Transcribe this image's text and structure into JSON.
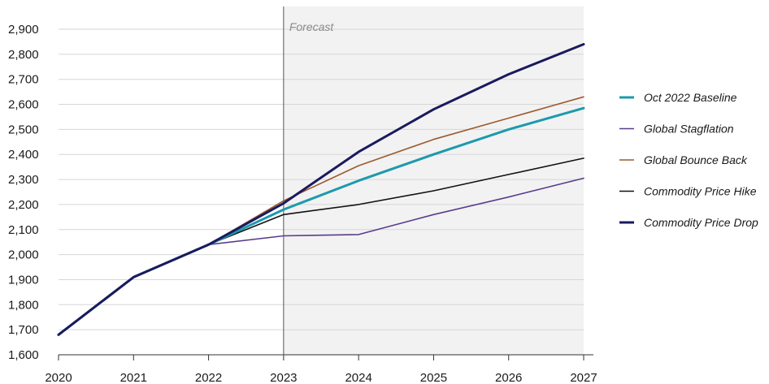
{
  "chart_data": {
    "type": "line",
    "x": [
      2020,
      2021,
      2022,
      2023,
      2024,
      2025,
      2026,
      2027
    ],
    "x_tick_labels": [
      "2020",
      "2021",
      "2022",
      "2023",
      "2024",
      "2025",
      "2026",
      "2027"
    ],
    "ylim": [
      1600,
      2900
    ],
    "y_ticks": [
      1600,
      1700,
      1800,
      1900,
      2000,
      2100,
      2200,
      2300,
      2400,
      2500,
      2600,
      2700,
      2800,
      2900
    ],
    "y_tick_labels": [
      "1,600",
      "1,700",
      "1,800",
      "1,900",
      "2,000",
      "2,100",
      "2,200",
      "2,300",
      "2,400",
      "2,500",
      "2,600",
      "2,700",
      "2,800",
      "2,900"
    ],
    "grid": "horizontal",
    "forecast": {
      "label": "Forecast",
      "start_x": 2023,
      "end_x": 2027,
      "shade_color": "#f2f2f2"
    },
    "legend_position": "right",
    "series": [
      {
        "name": "Oct 2022 Baseline",
        "color": "#1c9aad",
        "width": 3,
        "values": [
          1680,
          1910,
          2040,
          2180,
          2295,
          2400,
          2500,
          2585
        ]
      },
      {
        "name": "Global Stagflation",
        "color": "#5a3c8c",
        "width": 1.6,
        "values": [
          1680,
          1910,
          2040,
          2075,
          2080,
          2160,
          2230,
          2305
        ]
      },
      {
        "name": "Global Bounce Back",
        "color": "#9c5a2e",
        "width": 1.6,
        "values": [
          1680,
          1910,
          2040,
          2215,
          2355,
          2460,
          2545,
          2630
        ]
      },
      {
        "name": "Commodity Price Hike",
        "color": "#111111",
        "width": 1.6,
        "values": [
          1680,
          1910,
          2040,
          2160,
          2200,
          2255,
          2320,
          2385
        ]
      },
      {
        "name": "Commodity Price Drop",
        "color": "#1a1a5e",
        "width": 3,
        "values": [
          1680,
          1910,
          2040,
          2205,
          2410,
          2580,
          2720,
          2840
        ]
      }
    ]
  }
}
